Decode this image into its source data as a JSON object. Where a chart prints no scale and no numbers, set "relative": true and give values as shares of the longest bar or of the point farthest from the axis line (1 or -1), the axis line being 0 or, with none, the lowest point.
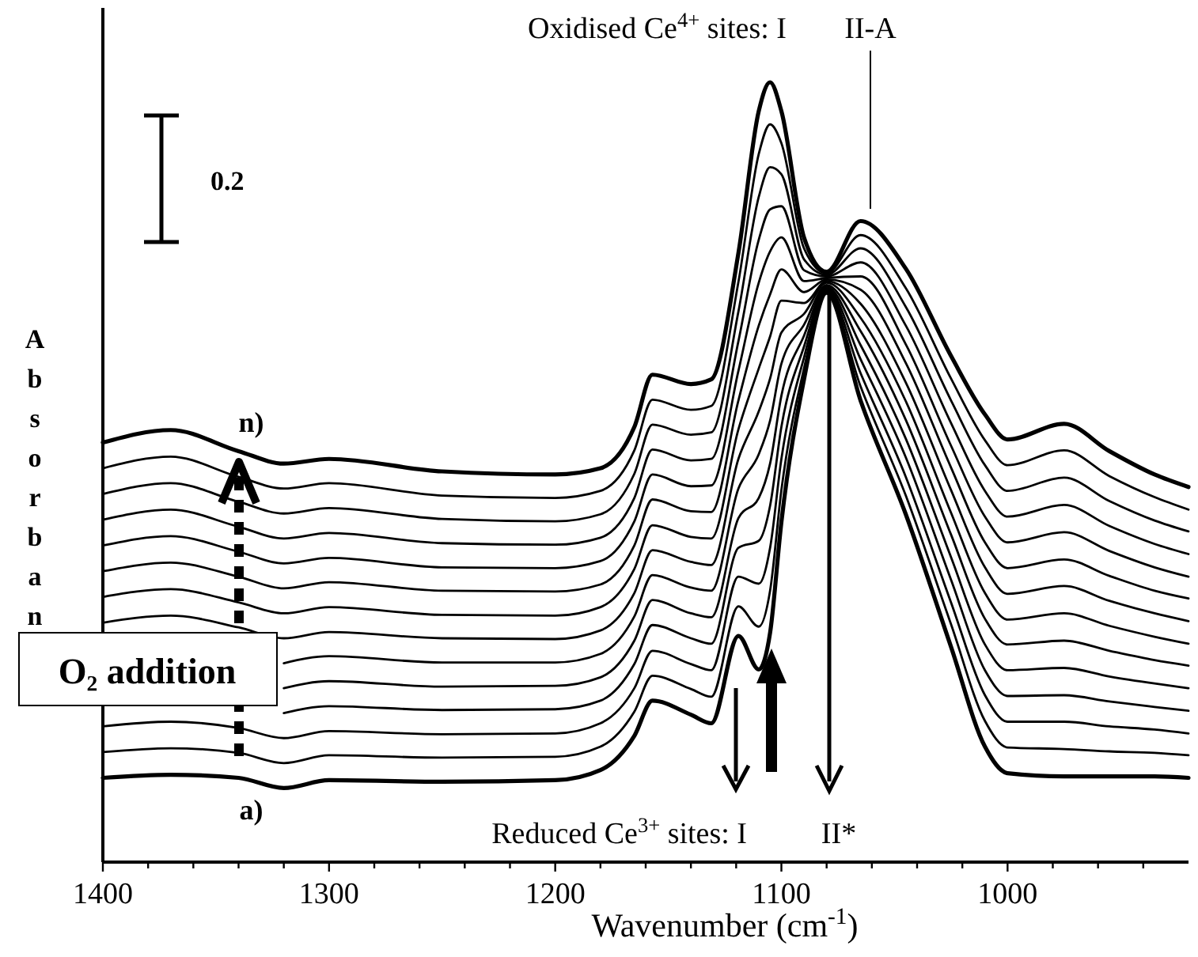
{
  "chart_data": {
    "type": "line",
    "relative": true,
    "xlabel": "Wavenumber (cm$^{-1}$)",
    "ylabel": "Absorbance",
    "xlim": [
      1400,
      920
    ],
    "xticks": [
      1400,
      {
        "value": 1380,
        "label": null
      },
      {
        "value": 1360,
        "label": null
      },
      {
        "value": 1340,
        "label": null
      },
      {
        "value": 1320,
        "label": null
      },
      1300,
      {
        "value": 1280,
        "label": null
      },
      {
        "value": 1260,
        "label": null
      },
      {
        "value": 1240,
        "label": null
      },
      {
        "value": 1220,
        "label": null
      },
      1200,
      {
        "value": 1180,
        "label": null
      },
      {
        "value": 1160,
        "label": null
      },
      {
        "value": 1140,
        "label": null
      },
      {
        "value": 1120,
        "label": null
      },
      1100,
      {
        "value": 1080,
        "label": null
      },
      {
        "value": 1060,
        "label": null
      },
      {
        "value": 1040,
        "label": null
      },
      {
        "value": 1020,
        "label": null
      },
      1000,
      {
        "value": 980,
        "label": null
      },
      {
        "value": 960,
        "label": null
      },
      {
        "value": 940,
        "label": null
      }
    ],
    "x": [
      1400,
      1370,
      1340,
      1320,
      1300,
      1250,
      1200,
      1180,
      1165,
      1157,
      1140,
      1131,
      1119,
      1110,
      1105,
      1100,
      1090,
      1080,
      1065,
      1045,
      1025,
      1010,
      1000,
      975,
      955,
      935,
      920
    ],
    "legend": false,
    "grid": false,
    "marker": "none",
    "line_style": "solid",
    "series": [
      {
        "name": "a)",
        "color": "#000000",
        "values": [
          0.108,
          0.112,
          0.108,
          0.095,
          0.105,
          0.103,
          0.105,
          0.118,
          0.162,
          0.207,
          0.189,
          0.178,
          0.29,
          0.247,
          0.294,
          0.436,
          0.619,
          0.73,
          0.592,
          0.446,
          0.276,
          0.148,
          0.114,
          0.11,
          0.11,
          0.11,
          0.108
        ]
      },
      {
        "color": "#000000",
        "values": [
          0.141,
          0.146,
          0.14,
          0.127,
          0.137,
          0.134,
          0.135,
          0.148,
          0.193,
          0.239,
          0.222,
          0.212,
          0.328,
          0.302,
          0.348,
          0.477,
          0.633,
          0.732,
          0.61,
          0.47,
          0.305,
          0.181,
          0.147,
          0.145,
          0.142,
          0.14,
          0.137
        ]
      },
      {
        "color": "#000000",
        "values": [
          0.174,
          0.18,
          0.172,
          0.159,
          0.168,
          0.164,
          0.165,
          0.178,
          0.223,
          0.271,
          0.254,
          0.246,
          0.366,
          0.357,
          0.403,
          0.517,
          0.647,
          0.734,
          0.627,
          0.494,
          0.333,
          0.214,
          0.18,
          0.18,
          0.174,
          0.17,
          0.165
        ]
      },
      {
        "color": "#000000",
        "values": [
          null,
          null,
          null,
          0.191,
          0.2,
          0.195,
          0.196,
          0.207,
          0.254,
          0.304,
          0.287,
          0.28,
          0.403,
          0.412,
          0.457,
          0.558,
          0.661,
          0.736,
          0.645,
          0.519,
          0.362,
          0.246,
          0.213,
          0.214,
          0.206,
          0.199,
          0.194
        ]
      },
      {
        "color": "#000000",
        "values": [
          null,
          null,
          null,
          0.223,
          0.232,
          0.225,
          0.226,
          0.237,
          0.284,
          0.336,
          0.319,
          0.314,
          0.441,
          0.467,
          0.511,
          0.598,
          0.675,
          0.738,
          0.663,
          0.543,
          0.391,
          0.279,
          0.246,
          0.249,
          0.238,
          0.229,
          0.223
        ]
      },
      {
        "color": "#000000",
        "values": [
          null,
          null,
          null,
          0.255,
          0.264,
          0.256,
          0.256,
          0.267,
          0.315,
          0.368,
          0.352,
          0.348,
          0.479,
          0.523,
          0.566,
          0.639,
          0.689,
          0.74,
          0.681,
          0.567,
          0.42,
          0.312,
          0.279,
          0.284,
          0.271,
          0.259,
          0.252
        ]
      },
      {
        "color": "#000000",
        "values": [
          0.307,
          0.316,
          0.301,
          0.287,
          0.295,
          0.287,
          0.286,
          0.297,
          0.345,
          0.4,
          0.385,
          0.381,
          0.517,
          0.578,
          0.62,
          0.679,
          0.703,
          0.743,
          0.698,
          0.591,
          0.448,
          0.345,
          0.311,
          0.319,
          0.303,
          0.289,
          0.28
        ]
      },
      {
        "color": "#000000",
        "values": [
          0.34,
          0.35,
          0.333,
          0.319,
          0.327,
          0.317,
          0.316,
          0.327,
          0.376,
          0.432,
          0.417,
          0.415,
          0.555,
          0.633,
          0.674,
          0.72,
          0.717,
          0.745,
          0.716,
          0.615,
          0.477,
          0.378,
          0.344,
          0.354,
          0.335,
          0.319,
          0.309
        ]
      },
      {
        "color": "#000000",
        "values": [
          0.373,
          0.384,
          0.366,
          0.351,
          0.359,
          0.348,
          0.347,
          0.356,
          0.406,
          0.465,
          0.45,
          0.449,
          0.592,
          0.688,
          0.728,
          0.76,
          0.731,
          0.747,
          0.734,
          0.64,
          0.506,
          0.41,
          0.377,
          0.388,
          0.367,
          0.348,
          0.338
        ]
      },
      {
        "color": "#000000",
        "values": [
          0.406,
          0.418,
          0.398,
          0.383,
          0.39,
          0.378,
          0.377,
          0.386,
          0.437,
          0.497,
          0.482,
          0.483,
          0.63,
          0.743,
          0.783,
          0.801,
          0.745,
          0.749,
          0.751,
          0.664,
          0.534,
          0.443,
          0.41,
          0.423,
          0.399,
          0.378,
          0.366
        ]
      },
      {
        "color": "#000000",
        "values": [
          0.439,
          0.452,
          0.43,
          0.415,
          0.422,
          0.409,
          0.407,
          0.416,
          0.467,
          0.529,
          0.515,
          0.517,
          0.668,
          0.798,
          0.837,
          0.841,
          0.759,
          0.751,
          0.769,
          0.688,
          0.563,
          0.476,
          0.443,
          0.458,
          0.431,
          0.408,
          0.395
        ]
      },
      {
        "color": "#000000",
        "values": [
          0.472,
          0.486,
          0.462,
          0.447,
          0.454,
          0.44,
          0.437,
          0.446,
          0.498,
          0.561,
          0.548,
          0.551,
          0.706,
          0.853,
          0.891,
          0.882,
          0.773,
          0.753,
          0.787,
          0.712,
          0.592,
          0.509,
          0.476,
          0.493,
          0.463,
          0.438,
          0.424
        ]
      },
      {
        "color": "#000000",
        "values": [
          0.505,
          0.52,
          0.494,
          0.479,
          0.486,
          0.47,
          0.467,
          0.476,
          0.528,
          0.593,
          0.58,
          0.585,
          0.744,
          0.908,
          0.946,
          0.922,
          0.787,
          0.755,
          0.804,
          0.736,
          0.62,
          0.541,
          0.509,
          0.528,
          0.495,
          0.468,
          0.452
        ]
      },
      {
        "name": "n)",
        "color": "#000000",
        "values": [
          0.538,
          0.554,
          0.527,
          0.511,
          0.517,
          0.501,
          0.497,
          0.505,
          0.558,
          0.625,
          0.613,
          0.619,
          0.781,
          0.963,
          1.0,
          0.963,
          0.801,
          0.757,
          0.822,
          0.761,
          0.649,
          0.574,
          0.542,
          0.562,
          0.527,
          0.497,
          0.481
        ]
      }
    ],
    "annotations": [
      "Oxidised Ce$^{4+}$ sites: I",
      "II-A",
      "Reduced Ce$^{3+}$ sites: I",
      "II*",
      "O₂ addition",
      "0.2"
    ]
  }
}
